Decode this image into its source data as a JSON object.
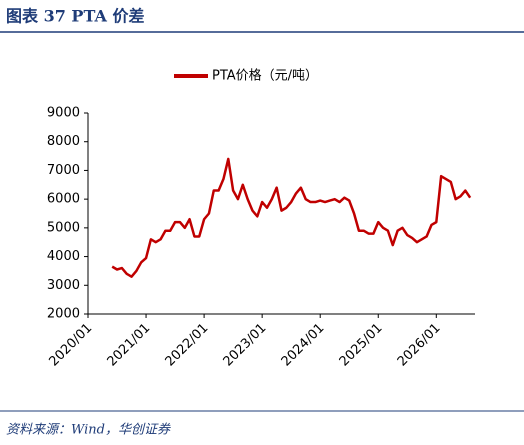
{
  "chart_data": {
    "type": "line",
    "title": "图表 37 PTA 价差",
    "source": "资料来源：Wind，华创证券",
    "x": [
      "2020/06",
      "2020/07",
      "2020/08",
      "2020/09",
      "2020/10",
      "2020/11",
      "2020/12",
      "2021/01",
      "2021/02",
      "2021/03",
      "2021/04",
      "2021/05",
      "2021/06",
      "2021/07",
      "2021/08",
      "2021/09",
      "2021/10",
      "2021/11",
      "2021/12",
      "2022/01",
      "2022/02",
      "2022/03",
      "2022/04",
      "2022/05",
      "2022/06",
      "2022/07",
      "2022/08",
      "2022/09",
      "2022/10",
      "2022/11",
      "2022/12",
      "2023/01",
      "2023/02",
      "2023/03",
      "2023/04",
      "2023/05",
      "2023/06",
      "2023/07",
      "2023/08",
      "2023/09",
      "2023/10",
      "2023/11",
      "2023/12",
      "2024/01",
      "2024/02",
      "2024/03",
      "2024/04",
      "2024/05",
      "2024/06",
      "2024/07",
      "2024/08",
      "2024/09",
      "2024/10",
      "2024/11",
      "2024/12",
      "2025/01",
      "2025/02",
      "2025/03",
      "2025/04",
      "2025/05",
      "2025/06",
      "2025/07",
      "2025/08",
      "2025/09",
      "2025/10",
      "2025/11",
      "2025/12",
      "2026/01",
      "2026/02",
      "2026/03",
      "2026/04",
      "2026/05",
      "2026/06",
      "2026/07",
      "2026/08"
    ],
    "series": [
      {
        "name": "PTA价格（元/吨）",
        "color": "#c00000",
        "values": [
          3650,
          3550,
          3600,
          3400,
          3300,
          3500,
          3800,
          3950,
          4600,
          4500,
          4600,
          4900,
          4900,
          5200,
          5200,
          5000,
          5300,
          4700,
          4700,
          5300,
          5500,
          6300,
          6300,
          6700,
          7400,
          6300,
          6000,
          6500,
          6000,
          5600,
          5400,
          5900,
          5700,
          6000,
          6400,
          5600,
          5700,
          5900,
          6200,
          6400,
          6000,
          5900,
          5900,
          5950,
          5900,
          5950,
          6000,
          5900,
          6050,
          5950,
          5500,
          4900,
          4900,
          4800,
          4800,
          5200,
          5000,
          4900,
          4400,
          4900,
          5000,
          4750,
          4650,
          4500,
          4600,
          4700,
          5100,
          5200,
          6800,
          6700,
          6600,
          6000,
          6100,
          6300,
          6050
        ]
      }
    ],
    "xlim": [
      "2020/01",
      "2026/09"
    ],
    "xticks": [
      "2020/01",
      "2021/01",
      "2022/01",
      "2023/01",
      "2024/01",
      "2025/01",
      "2026/01"
    ],
    "ylim": [
      2000,
      9000
    ],
    "yticks": [
      2000,
      3000,
      4000,
      5000,
      6000,
      7000,
      8000,
      9000
    ],
    "legend": "top"
  }
}
